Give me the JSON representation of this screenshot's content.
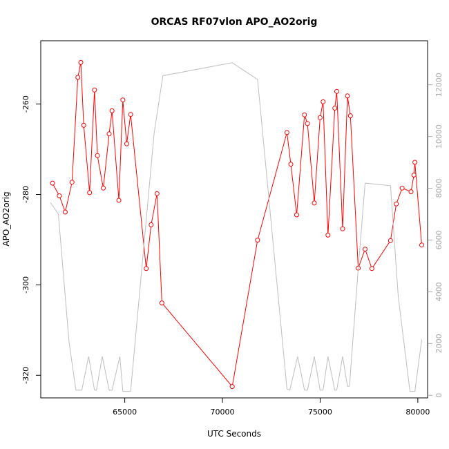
{
  "chart_data": {
    "type": "line",
    "title": "ORCAS RF07vlon APO_AO2orig",
    "xlabel": "UTC Seconds",
    "ylabel": "APO_AO2orig",
    "xlim": [
      60700,
      80500
    ],
    "ylim": [
      -325,
      -246
    ],
    "y2lim": [
      -100,
      13700
    ],
    "x_ticks": [
      65000,
      70000,
      75000,
      80000
    ],
    "x_tick_labels": [
      "65000",
      "70000",
      "75000",
      "80000"
    ],
    "y_ticks": [
      -260,
      -280,
      -300,
      -320
    ],
    "y_tick_labels": [
      "-260",
      "-280",
      "-300",
      "-320"
    ],
    "y2_ticks": [
      0,
      2000,
      4000,
      6000,
      8000,
      10000,
      12000
    ],
    "y2_tick_labels": [
      "0",
      "2000",
      "4000",
      "6000",
      "8000",
      "10000",
      "12000"
    ],
    "grid": false,
    "colors": {
      "primary": "#ff0000",
      "secondary": "#bebebe",
      "axis": "#000000",
      "axis_right": "#aaaaaa"
    },
    "series": [
      {
        "axis": "left",
        "style": "line-with-circles",
        "x": [
          61300,
          61650,
          61950,
          62300,
          62600,
          62750,
          62900,
          63200,
          63450,
          63600,
          63900,
          64200,
          64350,
          64700,
          64900,
          65100,
          65300,
          66100,
          66350,
          66650,
          66900,
          70500,
          71800,
          73300,
          73500,
          73800,
          74200,
          74350,
          74700,
          75000,
          75150,
          75400,
          75750,
          75850,
          76150,
          76400,
          76550,
          76950,
          77300,
          77650,
          78600,
          78900,
          79200,
          79650,
          79800,
          79850,
          80200
        ],
        "y": [
          -277.5,
          -280.3,
          -283.9,
          -277.3,
          -254.1,
          -250.8,
          -264.7,
          -279.6,
          -256.9,
          -271.4,
          -278.6,
          -266.6,
          -261.5,
          -281.3,
          -259.1,
          -268.8,
          -262.3,
          -296.4,
          -286.7,
          -279.8,
          -304.0,
          -322.5,
          -290.1,
          -266.3,
          -273.3,
          -284.5,
          -262.4,
          -264.3,
          -281.9,
          -263.0,
          -259.5,
          -289.0,
          -260.9,
          -257.2,
          -287.6,
          -258.2,
          -262.6,
          -296.3,
          -292.1,
          -296.4,
          -290.2,
          -282.1,
          -278.6,
          -279.4,
          -275.7,
          -272.9,
          -291.2
        ]
      },
      {
        "axis": "right",
        "style": "line",
        "x": [
          61200,
          61600,
          62150,
          62500,
          62800,
          63150,
          63450,
          63550,
          63850,
          64200,
          64350,
          64750,
          64900,
          65300,
          66500,
          66950,
          70500,
          71800,
          73300,
          73450,
          73850,
          74200,
          74350,
          74700,
          75000,
          75150,
          75400,
          75750,
          75850,
          76150,
          76400,
          76500,
          76950,
          77300,
          78600,
          79000,
          79600,
          79850,
          80200
        ],
        "y": [
          7450,
          7000,
          2050,
          200,
          200,
          1500,
          200,
          200,
          1500,
          200,
          200,
          1500,
          150,
          150,
          10100,
          12350,
          12850,
          12200,
          250,
          200,
          1500,
          200,
          200,
          1500,
          200,
          200,
          1500,
          200,
          200,
          1500,
          350,
          350,
          4900,
          8200,
          8100,
          3800,
          150,
          150,
          2150
        ]
      }
    ]
  }
}
